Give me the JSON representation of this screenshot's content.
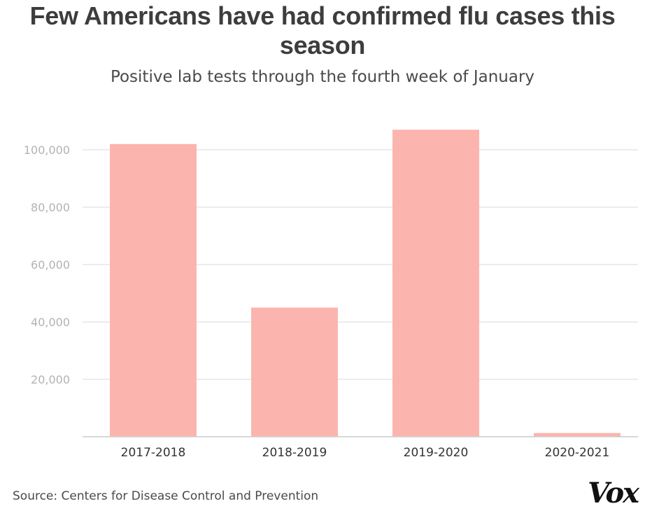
{
  "header": {
    "title": "Few Americans have had confirmed flu cases this season",
    "subtitle": "Positive lab tests through the fourth week of January"
  },
  "footer": {
    "source": "Source: Centers for Disease Control and Prevention",
    "logo": "Vox"
  },
  "colors": {
    "bar": "#fbb5ae",
    "grid": "#e6e6e6",
    "axis": "#cccccc"
  },
  "chart_data": {
    "type": "bar",
    "title": "Few Americans have had confirmed flu cases this season",
    "subtitle": "Positive lab tests through the fourth week of January",
    "xlabel": "",
    "ylabel": "",
    "categories": [
      "2017-2018",
      "2018-2019",
      "2019-2020",
      "2020-2021"
    ],
    "values": [
      102000,
      45000,
      107000,
      1300
    ],
    "ylim": [
      0,
      110000
    ],
    "yticks": [
      20000,
      40000,
      60000,
      80000,
      100000
    ],
    "ytick_labels": [
      "20,000",
      "40,000",
      "60,000",
      "80,000",
      "100,000"
    ],
    "grid": true,
    "legend": "none"
  }
}
